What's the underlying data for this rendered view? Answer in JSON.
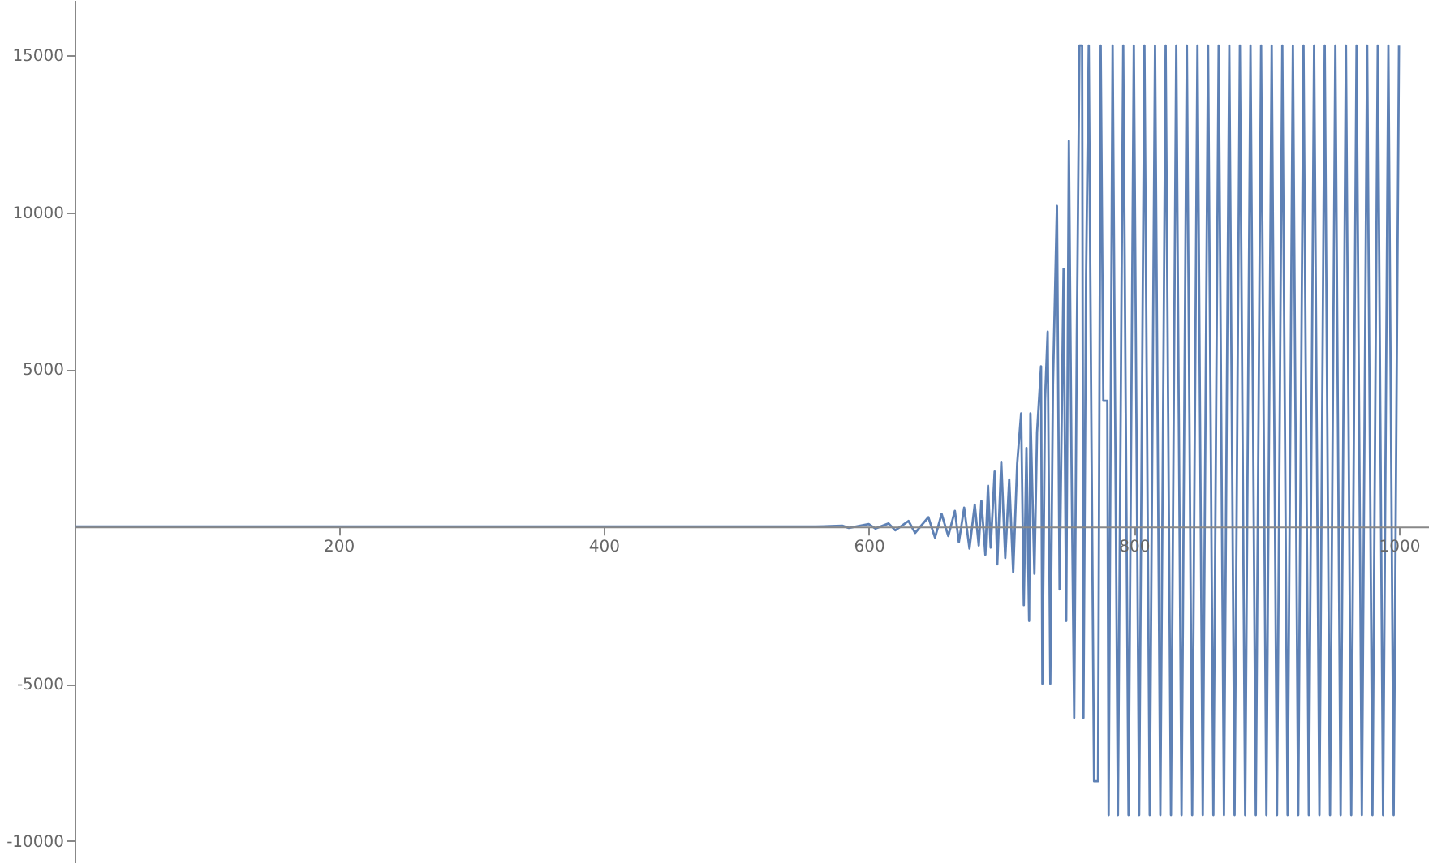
{
  "chart_data": {
    "type": "line",
    "grid": false,
    "x": [
      1,
      100,
      200,
      300,
      400,
      500,
      560,
      580,
      585,
      600,
      605,
      615,
      620,
      630,
      635,
      645,
      650,
      655,
      660,
      665,
      668,
      672,
      676,
      680,
      683,
      685,
      688,
      690,
      692,
      695,
      697,
      700,
      703,
      706,
      709,
      712,
      715,
      717,
      719,
      721,
      722,
      725,
      727,
      730,
      731,
      733,
      735,
      737,
      739,
      742,
      744,
      747,
      749,
      751,
      753,
      755,
      757,
      759,
      761,
      762,
      764,
      766,
      768,
      770,
      773,
      775,
      777,
      780,
      781,
      784,
      788,
      792,
      796,
      800,
      804,
      808,
      812,
      816,
      820,
      824,
      828,
      832,
      836,
      840,
      844,
      848,
      852,
      856,
      860,
      864,
      868,
      872,
      876,
      880,
      884,
      888,
      892,
      896,
      900,
      904,
      908,
      912,
      916,
      920,
      924,
      928,
      932,
      936,
      940,
      944,
      948,
      952,
      956,
      960,
      964,
      968,
      972,
      976,
      980,
      984,
      988,
      992,
      996,
      1000
    ],
    "series": [
      {
        "color": "#5e81b5",
        "values": [
          0,
          0,
          0,
          0,
          0,
          0,
          0,
          30,
          -40,
          80,
          -60,
          100,
          -120,
          180,
          -200,
          300,
          -350,
          400,
          -300,
          500,
          -500,
          600,
          -700,
          700,
          -600,
          820,
          -900,
          1300,
          -670,
          1750,
          -1200,
          2060,
          -1000,
          1500,
          -1450,
          2000,
          3600,
          -2500,
          2500,
          -3000,
          3600,
          -1500,
          3000,
          5100,
          -5000,
          4000,
          6200,
          -5000,
          4500,
          10200,
          -2000,
          8200,
          -3000,
          12270,
          2000,
          -6080,
          6000,
          15300,
          15300,
          -6080,
          8000,
          15300,
          3000,
          -8100,
          -8100,
          15300,
          4000,
          4000,
          -9180,
          15300,
          -9180,
          15300,
          -9180,
          15300,
          -9180,
          15300,
          -9180,
          15300,
          -9180,
          15300,
          -9180,
          15300,
          -9180,
          15300,
          -9180,
          15300,
          -9180,
          15300,
          -9180,
          15300,
          -9180,
          15300,
          -9180,
          15300,
          -9180,
          15300,
          -9180,
          15300,
          -9180,
          15300,
          -9180,
          15300,
          -9180,
          15300,
          -9180,
          15300,
          -9180,
          15300,
          -9180,
          15300,
          -9180,
          15300,
          -9180,
          15300,
          -9180,
          15300,
          -9180,
          15300,
          -9180,
          15300,
          -9180,
          15300,
          -9180,
          15300
        ]
      }
    ],
    "xlim": [
      1,
      1022
    ],
    "ylim": [
      -10700,
      16750
    ],
    "xticks": [
      200,
      400,
      600,
      800,
      1000
    ],
    "yticks": [
      -10000,
      -5000,
      5000,
      10000,
      15000
    ]
  }
}
